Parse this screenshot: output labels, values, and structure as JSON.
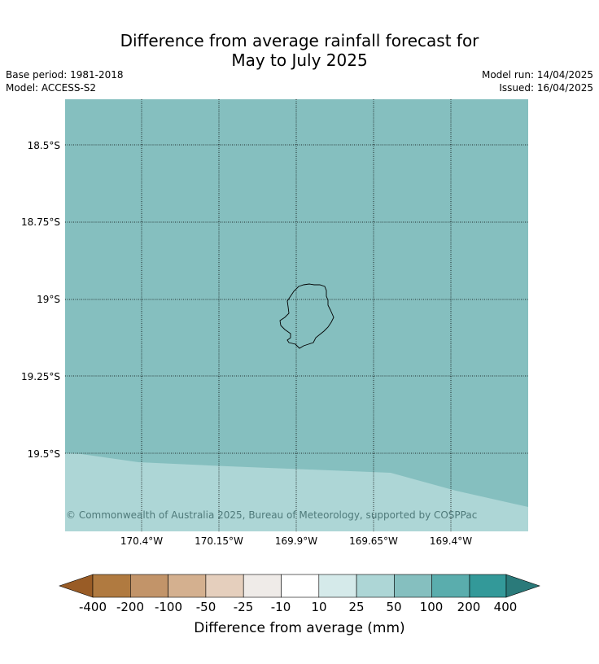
{
  "header": {
    "title_line1": "Difference from average rainfall forecast for",
    "title_line2": "May to July 2025",
    "base_period": "Base period: 1981-2018",
    "model": "Model: ACCESS-S2",
    "model_run": "Model run: 14/04/2025",
    "issued": "Issued: 16/04/2025"
  },
  "map": {
    "lat_labels": [
      "18.5°S",
      "18.75°S",
      "19°S",
      "19.25°S",
      "19.5°S"
    ],
    "lon_labels": [
      "170.4°W",
      "170.15°W",
      "169.9°W",
      "169.65°W",
      "169.4°W"
    ],
    "copyright": "© Commonwealth of Australia 2025, Bureau of Meteorology, supported by COSPPac",
    "region_colors": {
      "upper_region": "#85bfbf",
      "lower_region": "#add6d6"
    }
  },
  "colorbar": {
    "label": "Difference from average (mm)",
    "ticks": [
      "-400",
      "-200",
      "-100",
      "-50",
      "-25",
      "-10",
      "10",
      "25",
      "50",
      "100",
      "200",
      "400"
    ],
    "colors": [
      "#995c26",
      "#b07a40",
      "#c29469",
      "#d4b08f",
      "#e5cfbd",
      "#efebe8",
      "#ffffff",
      "#d5eaea",
      "#add6d6",
      "#85bfbf",
      "#5aadad",
      "#339999",
      "#2a7a7a"
    ]
  }
}
